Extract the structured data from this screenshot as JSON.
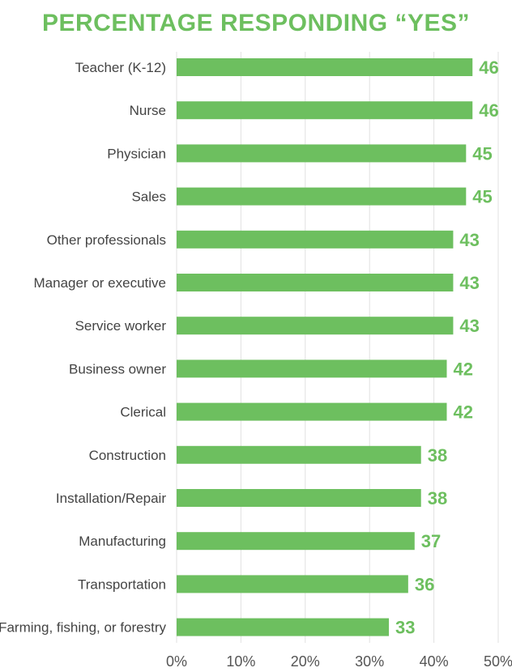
{
  "chart_data": {
    "type": "bar",
    "orientation": "horizontal",
    "title": "PERCENTAGE RESPONDING “YES”",
    "categories": [
      "Teacher (K-12)",
      "Nurse",
      "Physician",
      "Sales",
      "Other professionals",
      "Manager or executive",
      "Service worker",
      "Business owner",
      "Clerical",
      "Construction",
      "Installation/Repair",
      "Manufacturing",
      "Transportation",
      "Farming, fishing, or forestry"
    ],
    "values": [
      46,
      46,
      45,
      45,
      43,
      43,
      43,
      42,
      42,
      38,
      38,
      37,
      36,
      33
    ],
    "xlim": [
      0,
      50
    ],
    "xticks": [
      0,
      10,
      20,
      30,
      40,
      50
    ],
    "xtick_labels": [
      "0%",
      "10%",
      "20%",
      "30%",
      "40%",
      "50%"
    ],
    "xlabel": "",
    "ylabel": "",
    "grid": "vertical",
    "bar_color": "#6dbf5f",
    "value_label_color": "#6dbf5f"
  }
}
